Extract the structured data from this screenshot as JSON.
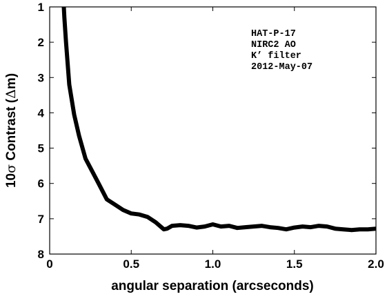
{
  "chart_data": {
    "type": "line",
    "xlabel": "angular separation (arcseconds)",
    "ylabel_prefix": "10",
    "ylabel_sigma": "σ",
    "ylabel_mid": " Contrast (",
    "ylabel_delta": "Δ",
    "ylabel_suffix": "m)",
    "xlim": [
      0,
      2.0
    ],
    "ylim": [
      1,
      8
    ],
    "y_inverted": true,
    "grid": false,
    "x_ticks": [
      0,
      0.5,
      1.0,
      1.5,
      2.0
    ],
    "x_tick_labels": [
      "0",
      "0.5",
      "1.0",
      "1.5",
      "2.0"
    ],
    "y_ticks": [
      1,
      2,
      3,
      4,
      5,
      6,
      7,
      8
    ],
    "y_tick_labels": [
      "1",
      "2",
      "3",
      "4",
      "5",
      "6",
      "7",
      "8"
    ],
    "annotation_lines": [
      "HAT-P-17",
      "NIRC2 AO",
      "K’ filter",
      "2012-May-07"
    ],
    "line_color": "#000000",
    "series": [
      {
        "x": [
          0.085,
          0.09,
          0.1,
          0.12,
          0.15,
          0.18,
          0.22,
          0.26,
          0.3,
          0.35,
          0.4,
          0.45,
          0.5,
          0.55,
          0.6,
          0.65,
          0.7,
          0.72,
          0.75,
          0.8,
          0.85,
          0.9,
          0.95,
          1.0,
          1.05,
          1.1,
          1.15,
          1.2,
          1.25,
          1.3,
          1.35,
          1.4,
          1.45,
          1.5,
          1.55,
          1.6,
          1.65,
          1.7,
          1.75,
          1.8,
          1.85,
          1.9,
          1.95,
          2.0
        ],
        "values": [
          0.85,
          1.3,
          2.0,
          3.2,
          4.05,
          4.65,
          5.3,
          5.65,
          6.0,
          6.45,
          6.6,
          6.75,
          6.85,
          6.88,
          6.95,
          7.1,
          7.3,
          7.28,
          7.2,
          7.18,
          7.2,
          7.25,
          7.22,
          7.16,
          7.22,
          7.2,
          7.26,
          7.24,
          7.22,
          7.2,
          7.24,
          7.26,
          7.3,
          7.25,
          7.22,
          7.24,
          7.2,
          7.22,
          7.28,
          7.3,
          7.32,
          7.3,
          7.3,
          7.28
        ]
      }
    ]
  }
}
